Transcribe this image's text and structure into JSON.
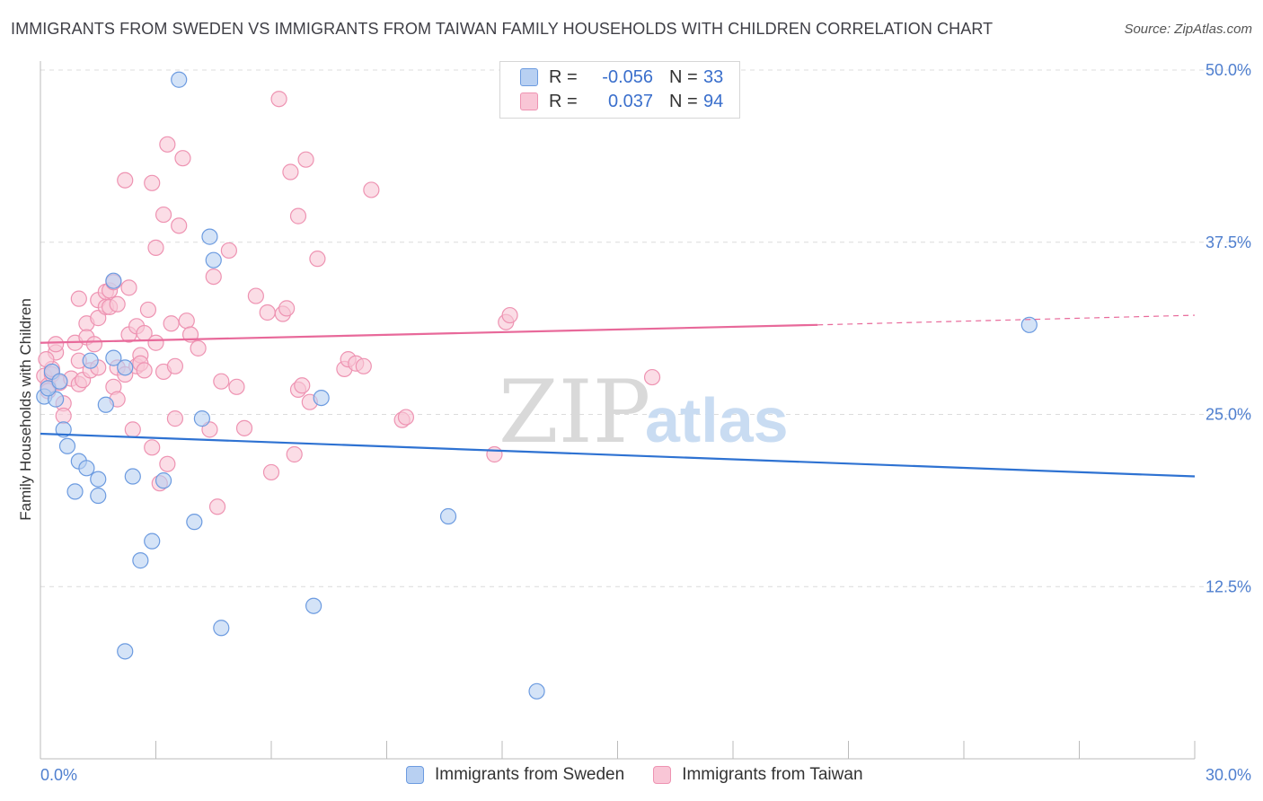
{
  "title": "IMMIGRANTS FROM SWEDEN VS IMMIGRANTS FROM TAIWAN FAMILY HOUSEHOLDS WITH CHILDREN CORRELATION CHART",
  "source": "Source: ZipAtlas.com",
  "watermark": {
    "zip": "ZIP",
    "atlas": "atlas"
  },
  "legend": {
    "sweden": {
      "r_label": "R =",
      "r_value": "-0.056",
      "n_label": "N =",
      "n_value": "33"
    },
    "taiwan": {
      "r_label": "R =",
      "r_value": "0.037",
      "n_label": "N =",
      "n_value": "94"
    }
  },
  "bottom_legend": {
    "sweden": "Immigrants from Sweden",
    "taiwan": "Immigrants from Taiwan"
  },
  "colors": {
    "sweden_fill": "#b8d0f2",
    "sweden_stroke": "#6c9be0",
    "sweden_line": "#2e72d2",
    "taiwan_fill": "#f9c6d6",
    "taiwan_stroke": "#ee93b2",
    "taiwan_line": "#e8699a",
    "tick_text": "#4f7fcf",
    "grid": "#dcdcdc"
  },
  "chart_data": {
    "type": "scatter",
    "title": "IMMIGRANTS FROM SWEDEN VS IMMIGRANTS FROM TAIWAN FAMILY HOUSEHOLDS WITH CHILDREN CORRELATION CHART",
    "xlabel": "",
    "ylabel": "Family Households with Children",
    "xlim": [
      0,
      30
    ],
    "ylim": [
      0,
      50
    ],
    "x_tick_labels": [
      "0.0%",
      "30.0%"
    ],
    "y_ticks": [
      12.5,
      25.0,
      37.5,
      50.0
    ],
    "y_tick_labels": [
      "12.5%",
      "25.0%",
      "37.5%",
      "50.0%"
    ],
    "grid": true,
    "legend_position": "top-center",
    "series": [
      {
        "name": "Immigrants from Sweden",
        "points": [
          [
            0.1,
            26.3
          ],
          [
            0.3,
            28.1
          ],
          [
            0.4,
            26.1
          ],
          [
            0.6,
            23.9
          ],
          [
            0.7,
            22.7
          ],
          [
            1.0,
            21.6
          ],
          [
            0.9,
            19.4
          ],
          [
            1.2,
            21.1
          ],
          [
            1.5,
            20.3
          ],
          [
            1.5,
            19.1
          ],
          [
            1.7,
            25.7
          ],
          [
            1.9,
            29.1
          ],
          [
            1.9,
            34.7
          ],
          [
            2.2,
            28.4
          ],
          [
            2.4,
            20.5
          ],
          [
            2.2,
            7.8
          ],
          [
            2.6,
            14.4
          ],
          [
            2.9,
            15.8
          ],
          [
            3.2,
            20.2
          ],
          [
            3.6,
            49.3
          ],
          [
            4.0,
            17.2
          ],
          [
            4.2,
            24.7
          ],
          [
            4.4,
            37.9
          ],
          [
            4.5,
            36.2
          ],
          [
            4.7,
            9.5
          ],
          [
            7.1,
            11.1
          ],
          [
            7.3,
            26.2
          ],
          [
            10.6,
            17.6
          ],
          [
            12.9,
            4.9
          ],
          [
            25.7,
            31.5
          ],
          [
            0.2,
            26.9
          ],
          [
            1.3,
            28.9
          ],
          [
            0.5,
            27.4
          ]
        ],
        "trend": {
          "x": [
            0,
            30
          ],
          "y": [
            23.6,
            20.5
          ]
        }
      },
      {
        "name": "Immigrants from Taiwan",
        "points": [
          [
            0.1,
            27.8
          ],
          [
            0.2,
            27.1
          ],
          [
            0.2,
            26.7
          ],
          [
            0.3,
            27.9
          ],
          [
            0.4,
            29.5
          ],
          [
            0.4,
            30.1
          ],
          [
            0.5,
            27.3
          ],
          [
            0.6,
            25.8
          ],
          [
            0.6,
            24.9
          ],
          [
            0.8,
            27.6
          ],
          [
            0.9,
            30.2
          ],
          [
            1.0,
            28.9
          ],
          [
            1.0,
            27.2
          ],
          [
            1.1,
            27.5
          ],
          [
            1.0,
            33.4
          ],
          [
            1.2,
            31.6
          ],
          [
            1.2,
            30.6
          ],
          [
            1.3,
            28.2
          ],
          [
            1.4,
            30.1
          ],
          [
            1.5,
            33.3
          ],
          [
            1.5,
            28.4
          ],
          [
            1.5,
            32.0
          ],
          [
            1.7,
            33.9
          ],
          [
            1.7,
            32.8
          ],
          [
            1.8,
            32.8
          ],
          [
            1.9,
            27.0
          ],
          [
            1.8,
            34.0
          ],
          [
            1.9,
            34.6
          ],
          [
            2.0,
            33.0
          ],
          [
            2.0,
            28.4
          ],
          [
            2.0,
            26.1
          ],
          [
            2.2,
            27.9
          ],
          [
            2.2,
            42.0
          ],
          [
            2.3,
            34.2
          ],
          [
            2.3,
            30.8
          ],
          [
            2.4,
            23.9
          ],
          [
            2.5,
            31.4
          ],
          [
            2.5,
            28.5
          ],
          [
            2.6,
            29.3
          ],
          [
            2.6,
            28.7
          ],
          [
            2.7,
            30.9
          ],
          [
            2.7,
            28.2
          ],
          [
            2.8,
            32.6
          ],
          [
            2.9,
            22.6
          ],
          [
            2.9,
            41.8
          ],
          [
            3.0,
            37.1
          ],
          [
            3.0,
            30.2
          ],
          [
            3.1,
            20.0
          ],
          [
            3.2,
            28.1
          ],
          [
            3.2,
            39.5
          ],
          [
            3.3,
            44.6
          ],
          [
            3.3,
            21.4
          ],
          [
            3.4,
            31.6
          ],
          [
            3.5,
            28.5
          ],
          [
            3.5,
            24.7
          ],
          [
            3.6,
            38.7
          ],
          [
            3.7,
            43.6
          ],
          [
            3.8,
            31.8
          ],
          [
            3.9,
            30.8
          ],
          [
            4.1,
            29.8
          ],
          [
            4.4,
            23.9
          ],
          [
            4.5,
            35.0
          ],
          [
            4.7,
            27.4
          ],
          [
            4.9,
            36.9
          ],
          [
            5.1,
            27.0
          ],
          [
            5.3,
            24.0
          ],
          [
            5.6,
            33.6
          ],
          [
            5.9,
            32.4
          ],
          [
            6.0,
            20.8
          ],
          [
            6.3,
            32.3
          ],
          [
            6.4,
            32.7
          ],
          [
            6.5,
            42.6
          ],
          [
            6.6,
            22.1
          ],
          [
            6.7,
            39.4
          ],
          [
            6.7,
            26.8
          ],
          [
            6.8,
            27.1
          ],
          [
            6.9,
            43.5
          ],
          [
            7.0,
            25.9
          ],
          [
            7.2,
            36.3
          ],
          [
            7.9,
            28.3
          ],
          [
            8.0,
            29.0
          ],
          [
            8.2,
            28.7
          ],
          [
            8.4,
            28.5
          ],
          [
            8.6,
            41.3
          ],
          [
            9.4,
            24.6
          ],
          [
            9.5,
            24.8
          ],
          [
            11.8,
            22.1
          ],
          [
            12.1,
            31.7
          ],
          [
            12.2,
            32.2
          ],
          [
            15.9,
            27.7
          ],
          [
            4.6,
            18.3
          ],
          [
            6.2,
            47.9
          ],
          [
            0.3,
            28.3
          ],
          [
            0.15,
            29.0
          ]
        ],
        "trend": {
          "x": [
            0,
            20.2
          ],
          "y": [
            30.2,
            31.5
          ]
        },
        "trend_extension": {
          "x": [
            20.2,
            30
          ],
          "y": [
            31.5,
            32.2
          ]
        }
      }
    ]
  }
}
